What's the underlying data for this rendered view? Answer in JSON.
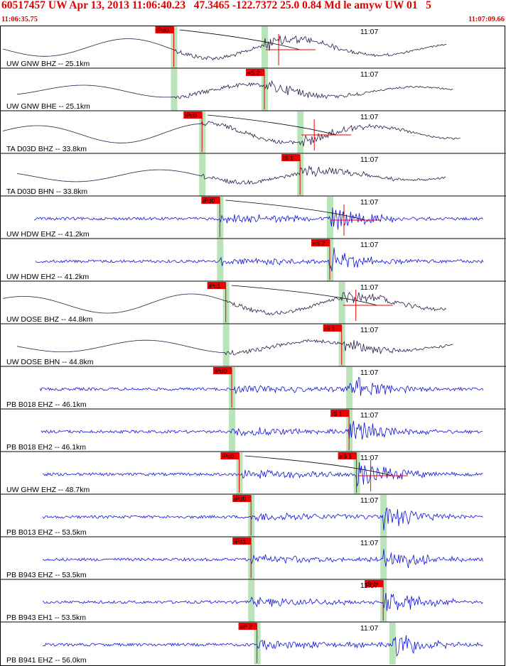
{
  "header": {
    "title": "60517457 UW Apr 13, 2013 11:06:40.23   47.3465 -122.7372 25.0 0.84 Md le amyw UW 01   5",
    "start_time": "11:06:35.75",
    "end_time": "11:07:09.66"
  },
  "colors": {
    "header_text": "#e00000",
    "pick_box": "#ee0000",
    "pick_text": "#000000",
    "broadband_trace": "#2a1a4a",
    "short_period_trace": "#1010dd",
    "pick_window": "#b9e3b9",
    "border": "#000000"
  },
  "chart_data": {
    "type": "line",
    "title": "60517457 UW Apr 13, 2013 11:06:40.23   47.3465 -122.7372 25.0 0.84 Md le amyw UW 01   5",
    "time_range": [
      "11:06:35.75",
      "11:07:09.66"
    ],
    "minute_tick": {
      "label": "11:07",
      "seconds_from_start": 24.25
    },
    "grid": false,
    "series": [
      {
        "name": "UW GNW BHZ -- 25.1km",
        "style": "broadband",
        "p_pick": "iPd0",
        "p_time": 11.7,
        "s_pick": null,
        "s_time": 17.8,
        "has_coda": true
      },
      {
        "name": "UW GNW BHE -- 25.1km",
        "style": "broadband",
        "p_pick": null,
        "p_time": 11.7,
        "s_pick": "eS 2",
        "s_time": 17.8,
        "has_coda": false
      },
      {
        "name": "TA D03D BHZ -- 33.8km",
        "style": "broadband",
        "p_pick": "iPc0",
        "p_time": 13.6,
        "s_pick": null,
        "s_time": 20.2,
        "has_coda": true
      },
      {
        "name": "TA D03D BHN -- 33.8km",
        "style": "broadband",
        "p_pick": null,
        "p_time": 13.6,
        "s_pick": "iS 1",
        "s_time": 20.2,
        "has_coda": false
      },
      {
        "name": "UW HDW EHZ -- 41.2km",
        "style": "short",
        "p_pick": "iPd0",
        "p_time": 14.8,
        "s_pick": null,
        "s_time": 22.2,
        "has_coda": true
      },
      {
        "name": "UW HDW EH2 -- 41.2km",
        "style": "short",
        "p_pick": null,
        "p_time": 14.8,
        "s_pick": "eS 2",
        "s_time": 22.2,
        "has_coda": false
      },
      {
        "name": "UW DOSE BHZ -- 44.8km",
        "style": "broadband",
        "p_pick": "iPc1",
        "p_time": 15.2,
        "s_pick": null,
        "s_time": 23.0,
        "has_coda": true
      },
      {
        "name": "UW DOSE BHN -- 44.8km",
        "style": "broadband",
        "p_pick": null,
        "p_time": 15.2,
        "s_pick": "iS 1",
        "s_time": 23.0,
        "has_coda": false
      },
      {
        "name": "PB B018 EHZ -- 46.1km",
        "style": "short",
        "p_pick": "iPd0",
        "p_time": 15.6,
        "s_pick": null,
        "s_time": 23.5,
        "has_coda": false
      },
      {
        "name": "PB B018 EH2 -- 46.1km",
        "style": "short",
        "p_pick": null,
        "p_time": 15.6,
        "s_pick": "iS 1",
        "s_time": 23.5,
        "has_coda": false
      },
      {
        "name": "UW GHW EHZ -- 48.7km",
        "style": "short",
        "p_pick": "iPc0",
        "p_time": 16.1,
        "s_pick": "eS 1",
        "s_time": 24.0,
        "has_coda": true
      },
      {
        "name": "PB B013 EHZ -- 53.5km",
        "style": "short",
        "p_pick": "iPd0",
        "p_time": 16.9,
        "s_pick": null,
        "s_time": 25.8,
        "has_coda": false
      },
      {
        "name": "PB B943 EHZ -- 53.5km",
        "style": "short",
        "p_pick": "iPd1",
        "p_time": 16.9,
        "s_pick": null,
        "s_time": 25.8,
        "has_coda": false
      },
      {
        "name": "PB B943 EH1 -- 53.5km",
        "style": "short",
        "p_pick": null,
        "p_time": 16.9,
        "s_pick": "iS 1",
        "s_time": 25.8,
        "has_coda": false
      },
      {
        "name": "PB B941 EHZ -- 56.0km",
        "style": "short",
        "p_pick": "eP 2",
        "p_time": 17.3,
        "s_pick": null,
        "s_time": 26.4,
        "has_coda": false
      }
    ]
  }
}
